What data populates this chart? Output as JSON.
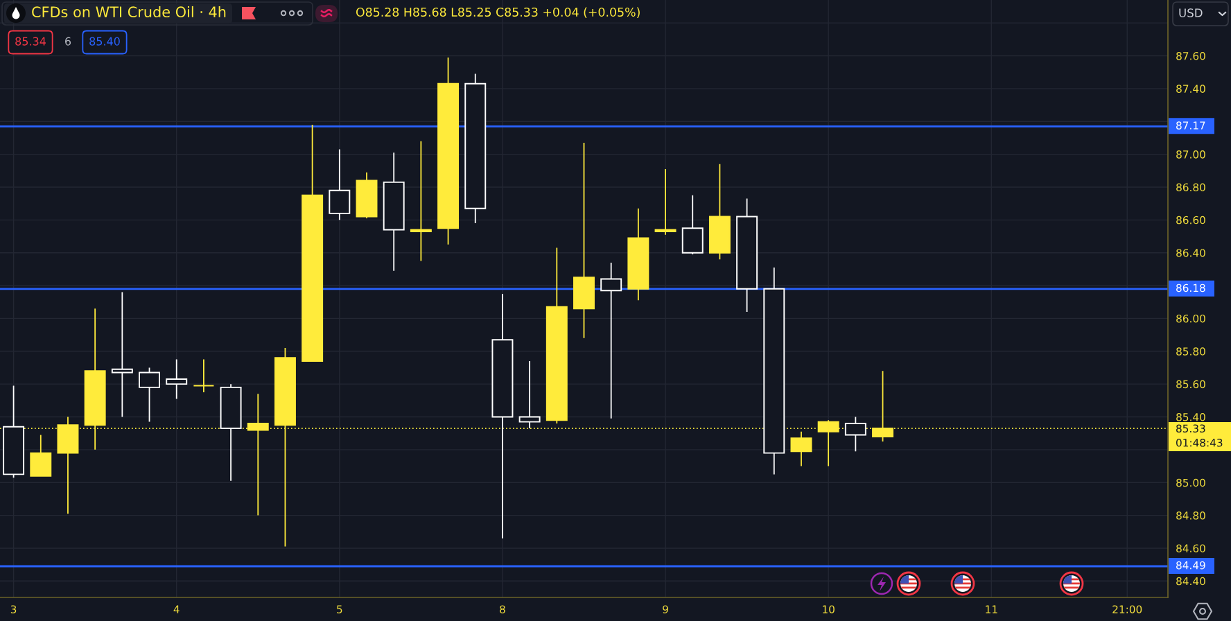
{
  "chart_data": {
    "type": "candlestick",
    "title": "CFDs on WTI Crude Oil · 4h",
    "subtitle": "O85.28 H85.68 L85.25 C85.33 +0.04 (+0.05%)",
    "categories": [
      "3",
      null,
      null,
      null,
      null,
      null,
      "4",
      null,
      null,
      null,
      null,
      null,
      "5",
      null,
      null,
      null,
      null,
      null,
      "8",
      null,
      null,
      null,
      null,
      null,
      "9",
      null,
      null,
      null,
      null,
      null,
      "10",
      null,
      null,
      null,
      null,
      null,
      "11",
      null,
      null,
      null,
      null,
      "21:00",
      null
    ],
    "ohlc": [
      [
        85.34,
        85.59,
        85.03,
        85.05
      ],
      [
        85.04,
        85.29,
        85.04,
        85.18
      ],
      [
        85.18,
        85.4,
        84.81,
        85.35
      ],
      [
        85.35,
        86.06,
        85.2,
        85.68
      ],
      [
        85.69,
        86.16,
        85.4,
        85.67
      ],
      [
        85.67,
        85.7,
        85.37,
        85.58
      ],
      [
        85.63,
        85.75,
        85.51,
        85.6
      ],
      [
        85.59,
        85.75,
        85.55,
        85.59
      ],
      [
        85.58,
        85.6,
        85.01,
        85.33
      ],
      [
        85.32,
        85.54,
        84.8,
        85.36
      ],
      [
        85.35,
        85.82,
        84.61,
        85.76
      ],
      [
        85.74,
        87.18,
        85.74,
        86.75
      ],
      [
        86.78,
        87.03,
        86.6,
        86.64
      ],
      [
        86.62,
        86.89,
        86.61,
        86.84
      ],
      [
        86.83,
        87.01,
        86.29,
        86.54
      ],
      [
        86.53,
        87.08,
        86.35,
        86.54
      ],
      [
        86.55,
        87.59,
        86.45,
        87.43
      ],
      [
        87.43,
        87.49,
        86.58,
        86.67
      ],
      [
        85.87,
        86.15,
        84.66,
        85.4
      ],
      [
        85.4,
        85.74,
        85.33,
        85.37
      ],
      [
        85.38,
        86.43,
        85.36,
        86.07
      ],
      [
        86.06,
        87.07,
        85.88,
        86.25
      ],
      [
        86.24,
        86.34,
        85.39,
        86.17
      ],
      [
        86.18,
        86.67,
        86.11,
        86.49
      ],
      [
        86.53,
        86.91,
        86.51,
        86.54
      ],
      [
        86.55,
        86.75,
        86.39,
        86.4
      ],
      [
        86.4,
        86.94,
        86.36,
        86.62
      ],
      [
        86.62,
        86.73,
        86.04,
        86.18
      ],
      [
        86.18,
        86.31,
        85.05,
        85.18
      ],
      [
        85.19,
        85.31,
        85.1,
        85.27
      ],
      [
        85.31,
        85.38,
        85.1,
        85.37
      ],
      [
        85.36,
        85.4,
        85.19,
        85.29
      ],
      [
        85.28,
        85.68,
        85.25,
        85.33
      ],
      null,
      null,
      null,
      null,
      null,
      null,
      null,
      null,
      null,
      null
    ],
    "colors": [
      "#ffffff",
      "#ffeb3b",
      "#ffeb3b",
      "#ffeb3b",
      "#ffffff",
      "#ffffff",
      "#ffffff",
      "#ffeb3b",
      "#ffffff",
      "#ffeb3b",
      "#ffeb3b",
      "#ffeb3b",
      "#ffffff",
      "#ffeb3b",
      "#ffffff",
      "#ffeb3b",
      "#ffeb3b",
      "#ffffff",
      "#ffffff",
      "#ffffff",
      "#ffeb3b",
      "#ffeb3b",
      "#ffffff",
      "#ffeb3b",
      "#ffeb3b",
      "#ffffff",
      "#ffeb3b",
      "#ffffff",
      "#ffffff",
      "#ffeb3b",
      "#ffeb3b",
      "#ffffff",
      "#ffeb3b",
      null,
      null,
      null,
      null,
      null,
      null,
      null,
      null,
      null,
      null
    ],
    "ylim": [
      84.3,
      87.94
    ],
    "yticks": [
      {
        "value": 84.4,
        "label": "84.40"
      },
      {
        "value": 84.6,
        "label": "84.60"
      },
      {
        "value": 84.8,
        "label": "84.80"
      },
      {
        "value": 85.0,
        "label": "85.00"
      },
      {
        "value": 85.2,
        "label": null
      },
      {
        "value": 85.4,
        "label": "85.40"
      },
      {
        "value": 85.6,
        "label": "85.60"
      },
      {
        "value": 85.8,
        "label": "85.80"
      },
      {
        "value": 86.0,
        "label": "86.00"
      },
      {
        "value": 86.2,
        "label": null
      },
      {
        "value": 86.4,
        "label": "86.40"
      },
      {
        "value": 86.6,
        "label": "86.60"
      },
      {
        "value": 86.8,
        "label": "86.80"
      },
      {
        "value": 87.0,
        "label": "87.00"
      },
      {
        "value": 87.2,
        "label": null
      },
      {
        "value": 87.4,
        "label": "87.40"
      },
      {
        "value": 87.6,
        "label": "87.60"
      },
      {
        "value": 87.8,
        "label": null
      }
    ],
    "grid": true,
    "ref_lines": [
      {
        "axis": "y",
        "value": 87.17,
        "label": "87.17",
        "color": "#2962ff"
      },
      {
        "axis": "y",
        "value": 86.18,
        "label": "86.18",
        "color": "#2962ff"
      },
      {
        "axis": "y",
        "value": 84.49,
        "label": "84.49",
        "color": "#2962ff"
      },
      {
        "axis": "y",
        "value": 85.33,
        "label": "85.33",
        "color": "#ffeb3b",
        "line_style": "dotted"
      }
    ],
    "annotations": [
      "85.34",
      "6",
      "85.40",
      "USD",
      "01:48:43"
    ]
  }
}
